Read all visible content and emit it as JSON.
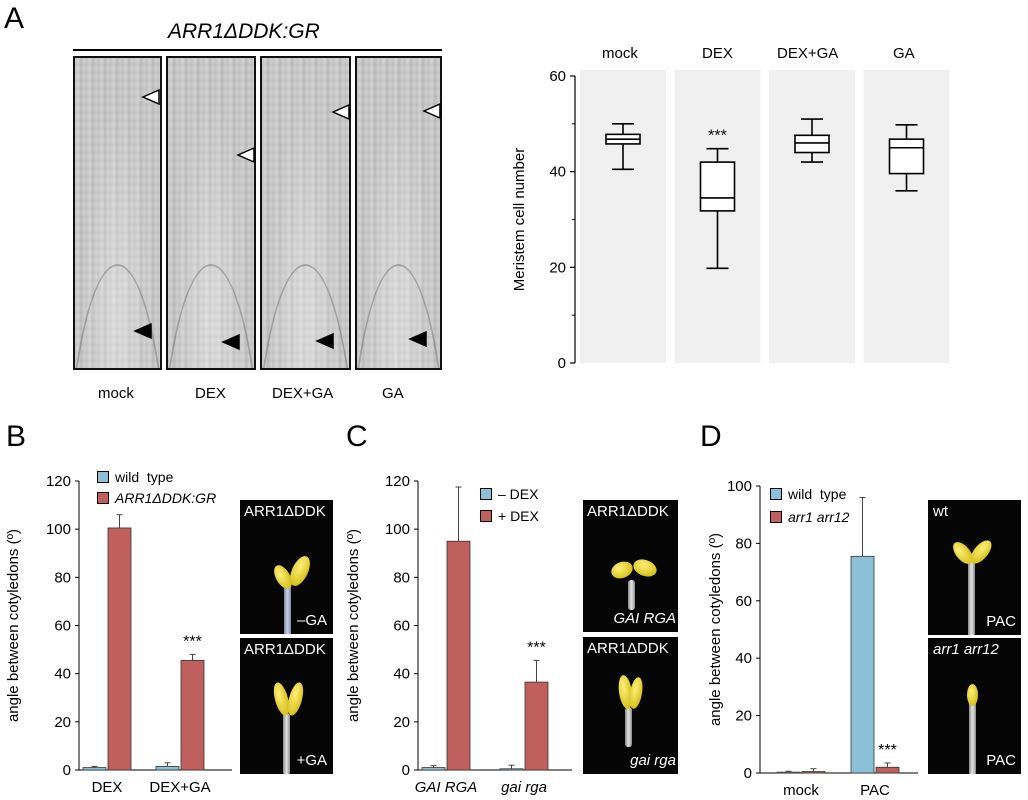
{
  "panels": {
    "A": {
      "letter": "A",
      "genotype_title": "ARR1ΔDDK:GR",
      "micrograph_labels": [
        "mock",
        "DEX",
        "DEX+GA",
        "GA"
      ],
      "box_headers": [
        "mock",
        "DEX",
        "DEX+GA",
        "GA"
      ],
      "significance": "***"
    },
    "B": {
      "letter": "B",
      "photo_top_title": "ARR1ΔDDK",
      "photo_top_caption": "–GA",
      "photo_bottom_title": "ARR1ΔDDK",
      "photo_bottom_caption": "+GA"
    },
    "C": {
      "letter": "C",
      "photo_top_title": "ARR1ΔDDK",
      "photo_top_caption": "GAI RGA",
      "photo_bottom_title": "ARR1ΔDDK",
      "photo_bottom_caption": "gai rga"
    },
    "D": {
      "letter": "D",
      "photo_top_title": "wt",
      "photo_top_caption": "PAC",
      "photo_bottom_title": "arr1 arr12",
      "photo_bottom_caption": "PAC"
    }
  },
  "chart_data": [
    {
      "panel": "A",
      "type": "box",
      "categories": [
        "mock",
        "DEX",
        "DEX+GA",
        "GA"
      ],
      "boxes": [
        {
          "min": 40.5,
          "q1": 45.8,
          "median": 46.8,
          "q3": 47.8,
          "max": 50
        },
        {
          "min": 19.8,
          "q1": 31.8,
          "median": 34.5,
          "q3": 42,
          "max": 44.8
        },
        {
          "min": 42,
          "q1": 44,
          "median": 46,
          "q3": 47.6,
          "max": 51
        },
        {
          "min": 36,
          "q1": 39.6,
          "median": 45,
          "q3": 46.8,
          "max": 49.8
        }
      ],
      "annotations": [
        {
          "category": "DEX",
          "text": "***"
        }
      ],
      "ylabel": "Meristem cell number",
      "ylim": [
        0,
        60
      ],
      "yticks": [
        0,
        20,
        40,
        60
      ],
      "grid": false
    },
    {
      "panel": "B",
      "type": "bar",
      "categories": [
        "DEX",
        "DEX+GA"
      ],
      "series": [
        {
          "name": "wild  type",
          "values": [
            1,
            1.5
          ],
          "errors": [
            0.5,
            1.5
          ],
          "color": "#8bc0d9"
        },
        {
          "name": "ARR1ΔDDK:GR",
          "values": [
            100.5,
            45.5
          ],
          "errors": [
            5.5,
            2.5
          ],
          "color": "#c0605c"
        }
      ],
      "annotations": [
        {
          "category": "DEX+GA",
          "series": 1,
          "text": "***"
        }
      ],
      "ylabel": "angle between cotyledons (º)",
      "ylim": [
        0,
        120
      ],
      "yticks": [
        0,
        20,
        40,
        60,
        80,
        100,
        120
      ],
      "legend": "top-left",
      "grid": false
    },
    {
      "panel": "C",
      "type": "bar",
      "categories": [
        "GAI RGA",
        "gai rga"
      ],
      "series": [
        {
          "name": "– DEX",
          "values": [
            1,
            0.5
          ],
          "errors": [
            0.8,
            1.5
          ],
          "color": "#8bc0d9"
        },
        {
          "name": "+ DEX",
          "values": [
            95,
            36.5
          ],
          "errors": [
            22.5,
            9
          ],
          "color": "#c0605c"
        }
      ],
      "annotations": [
        {
          "category": "gai rga",
          "series": 1,
          "text": "***"
        }
      ],
      "ylabel": "angle between cotyledons (º)",
      "ylim": [
        0,
        120
      ],
      "yticks": [
        0,
        20,
        40,
        60,
        80,
        100,
        120
      ],
      "legend": "top-left",
      "grid": false
    },
    {
      "panel": "D",
      "type": "bar",
      "categories": [
        "mock",
        "PAC"
      ],
      "series": [
        {
          "name": "wild  type",
          "values": [
            0.3,
            75.5
          ],
          "errors": [
            0.3,
            20.5
          ],
          "color": "#8bc0d9"
        },
        {
          "name": "arr1 arr12",
          "values": [
            0.5,
            2
          ],
          "errors": [
            1,
            1.5
          ],
          "color": "#c0605c"
        }
      ],
      "annotations": [
        {
          "category": "PAC",
          "series": 1,
          "text": "***"
        }
      ],
      "ylabel": "angle between cotyledons (º)",
      "ylim": [
        0,
        100
      ],
      "yticks": [
        0,
        20,
        40,
        60,
        80,
        100
      ],
      "legend": "top-left",
      "grid": false
    }
  ]
}
